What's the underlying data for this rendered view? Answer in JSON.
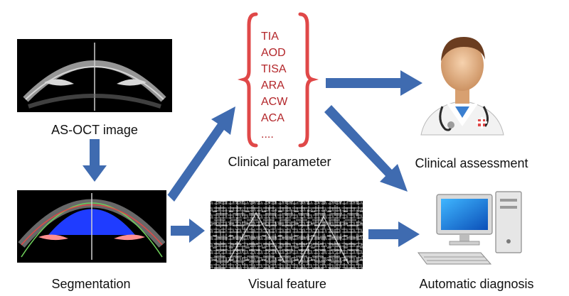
{
  "colors": {
    "arrow": "#3f6bb0",
    "brace": "#e04848",
    "param_text": "#b3262a",
    "seg_fill": "#1f3cff",
    "seg_outline_outer": "#6fcf5a",
    "seg_outline_inner": "#e04848",
    "iris_highlight": "#ff8f8f"
  },
  "icons": {
    "doctor": "doctor-icon",
    "computer": "computer-icon"
  },
  "labels": {
    "asoct": "AS-OCT image",
    "segmentation": "Segmentation",
    "clinical_parameter": "Clinical parameter",
    "visual_feature": "Visual feature",
    "clinical_assessment": "Clinical assessment",
    "automatic_diagnosis": "Automatic diagnosis"
  },
  "parameters": [
    "TIA",
    "AOD",
    "TISA",
    "ARA",
    "ACW",
    "ACA",
    "...."
  ]
}
